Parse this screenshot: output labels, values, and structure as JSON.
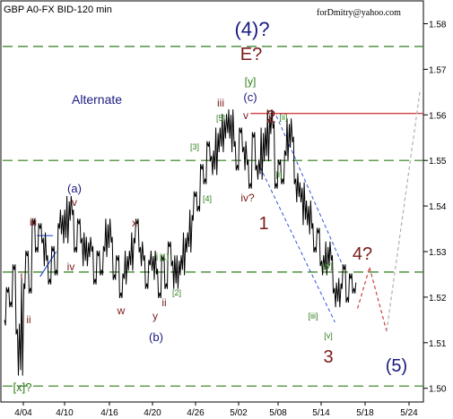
{
  "chart_data": {
    "type": "line",
    "title": "GBP A0-FX BID-120 min",
    "credit": "forDmitry@yahoo.com",
    "annotation_alternate": "Alternate",
    "y_ticks": [
      "1.58",
      "1.57",
      "1.56",
      "1.55",
      "1.54",
      "1.53",
      "1.52",
      "1.51",
      "1.50"
    ],
    "y_range": [
      1.497,
      1.585
    ],
    "x_ticks": [
      "4/04",
      "4/10",
      "4/16",
      "4/20",
      "4/26",
      "5/02",
      "5/08",
      "5/14",
      "5/18",
      "5/24"
    ],
    "horizontal_levels": [
      1.575,
      1.55,
      1.5255,
      1.5005
    ],
    "resistance_level": 1.5603,
    "series": [
      {
        "values": [
          1.515,
          1.521,
          1.519,
          1.526,
          1.513,
          1.504,
          1.523,
          1.529,
          1.522,
          1.536,
          1.531,
          1.535,
          1.533,
          1.528,
          1.524,
          1.53,
          1.526,
          1.535,
          1.538,
          1.533,
          1.541,
          1.538,
          1.531,
          1.536,
          1.533,
          1.528,
          1.532,
          1.53,
          1.524,
          1.529,
          1.526,
          1.53,
          1.536,
          1.532,
          1.525,
          1.528,
          1.521,
          1.524,
          1.529,
          1.527,
          1.533,
          1.536,
          1.531,
          1.528,
          1.523,
          1.527,
          1.529,
          1.525,
          1.521,
          1.528,
          1.523,
          1.531,
          1.528,
          1.523,
          1.528,
          1.526,
          1.533,
          1.531,
          1.538,
          1.542,
          1.54,
          1.548,
          1.546,
          1.553,
          1.551,
          1.548,
          1.556,
          1.553,
          1.559,
          1.556,
          1.56,
          1.553,
          1.549,
          1.556,
          1.553,
          1.549,
          1.545,
          1.555,
          1.549,
          1.547,
          1.556,
          1.551,
          1.56,
          1.557,
          1.545,
          1.549,
          1.546,
          1.551,
          1.558,
          1.554,
          1.546,
          1.542,
          1.544,
          1.537,
          1.54,
          1.535,
          1.531,
          1.534,
          1.528,
          1.526,
          1.531,
          1.528,
          1.522,
          1.519,
          1.523,
          1.526,
          1.52,
          1.524,
          1.522
        ]
      }
    ],
    "projection_red": [
      [
        1.5175,
        1.5265
      ],
      [
        1.5265,
        1.5125
      ]
    ],
    "projection_gray": [
      1.5125,
      1.565
    ],
    "wave_labels": [
      {
        "text": "(4)?",
        "color": "#1a1a80"
      },
      {
        "text": "E?",
        "color": "#7a1a1a"
      },
      {
        "text": "[y]",
        "color": "#2e7d1a"
      },
      {
        "text": "(c)",
        "color": "#1a1a80"
      },
      {
        "text": "iii",
        "color": "#7a1a1a"
      },
      {
        "text": "[5]",
        "color": "#2e7d1a"
      },
      {
        "text": "v",
        "color": "#7a1a1a"
      },
      {
        "text": "2",
        "color": "#7a1a1a"
      },
      {
        "text": "[ii]",
        "color": "#2e7d1a"
      },
      {
        "text": "(a)",
        "color": "#1a1a80"
      },
      {
        "text": "v",
        "color": "#7a1a1a"
      },
      {
        "text": "iii",
        "color": "#7a1a1a"
      },
      {
        "text": "x",
        "color": "#7a1a1a"
      },
      {
        "text": "[3]",
        "color": "#2e7d1a"
      },
      {
        "text": "[4]",
        "color": "#2e7d1a"
      },
      {
        "text": "iv?",
        "color": "#7a1a1a"
      },
      {
        "text": "[i]",
        "color": "#2e7d1a"
      },
      {
        "text": "1",
        "color": "#7a1a1a"
      },
      {
        "text": "i",
        "color": "#7a1a1a"
      },
      {
        "text": "iv",
        "color": "#7a1a1a"
      },
      {
        "text": "4?",
        "color": "#7a1a1a"
      },
      {
        "text": "[iv]",
        "color": "#2e7d1a"
      },
      {
        "text": "i",
        "color": "#2e7d1a"
      },
      {
        "text": "[1]",
        "color": "#2e7d1a"
      },
      {
        "text": "[2]",
        "color": "#2e7d1a"
      },
      {
        "text": "ii",
        "color": "#7a1a1a"
      },
      {
        "text": "w",
        "color": "#7a1a1a"
      },
      {
        "text": "ii",
        "color": "#7a1a1a"
      },
      {
        "text": "y",
        "color": "#7a1a1a"
      },
      {
        "text": "[iii]",
        "color": "#2e7d1a"
      },
      {
        "text": "[v]",
        "color": "#2e7d1a"
      },
      {
        "text": "(b)",
        "color": "#1a1a80"
      },
      {
        "text": "3",
        "color": "#7a1a1a"
      },
      {
        "text": "(5)",
        "color": "#1a1a80"
      },
      {
        "text": "[x]?",
        "color": "#2e7d1a"
      }
    ],
    "colors": {
      "price": "#000000",
      "level": "#2e7d1a",
      "resistance": "#d04040",
      "channel": "#3355dd",
      "projection": "#d04040",
      "projection_alt": "#b0b0b0"
    }
  }
}
